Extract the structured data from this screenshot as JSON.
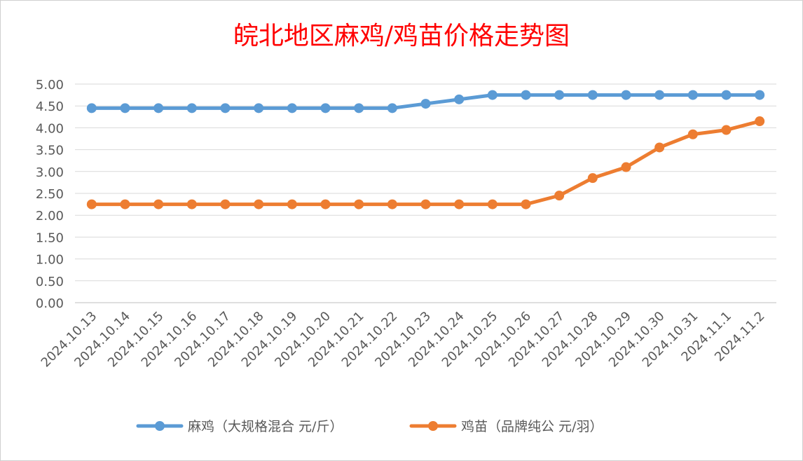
{
  "chart_data": {
    "type": "line",
    "title": "皖北地区麻鸡/鸡苗价格走势图",
    "xlabel": "",
    "ylabel": "",
    "ylim": [
      0,
      5
    ],
    "y_ticks": [
      "0.00",
      "0.50",
      "1.00",
      "1.50",
      "2.00",
      "2.50",
      "3.00",
      "3.50",
      "4.00",
      "4.50",
      "5.00"
    ],
    "grid": true,
    "legend_position": "bottom",
    "categories": [
      "2024.10.13",
      "2024.10.14",
      "2024.10.15",
      "2024.10.16",
      "2024.10.17",
      "2024.10.18",
      "2024.10.19",
      "2024.10.20",
      "2024.10.21",
      "2024.10.22",
      "2024.10.23",
      "2024.10.24",
      "2024.10.25",
      "2024.10.26",
      "2024.10.27",
      "2024.10.28",
      "2024.10.29",
      "2024.10.30",
      "2024.10.31",
      "2024.11.1",
      "2024.11.2"
    ],
    "series": [
      {
        "name": "麻鸡（大规格混合 元/斤）",
        "color": "#5b9bd5",
        "values": [
          4.45,
          4.45,
          4.45,
          4.45,
          4.45,
          4.45,
          4.45,
          4.45,
          4.45,
          4.45,
          4.55,
          4.65,
          4.75,
          4.75,
          4.75,
          4.75,
          4.75,
          4.75,
          4.75,
          4.75,
          4.75
        ]
      },
      {
        "name": "鸡苗（品牌纯公 元/羽）",
        "color": "#ed7d31",
        "values": [
          2.25,
          2.25,
          2.25,
          2.25,
          2.25,
          2.25,
          2.25,
          2.25,
          2.25,
          2.25,
          2.25,
          2.25,
          2.25,
          2.25,
          2.45,
          2.85,
          3.1,
          3.55,
          3.85,
          3.95,
          4.15
        ]
      }
    ]
  }
}
